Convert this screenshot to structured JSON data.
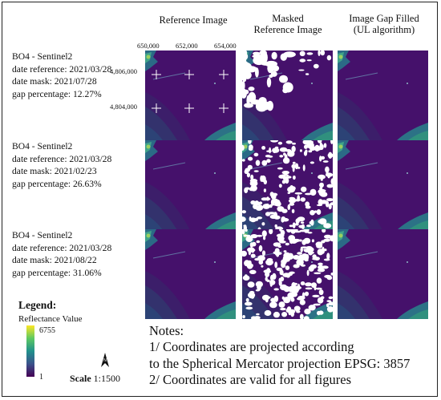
{
  "columns": {
    "reference": "Reference Image",
    "masked": [
      "Masked",
      "Reference Image"
    ],
    "filled": [
      "Image Gap Filled",
      "(UL algorithm)"
    ]
  },
  "coordinates": {
    "x": [
      "650,000",
      "652,000",
      "654,000"
    ],
    "y": [
      "4,806,000",
      "4,804,000"
    ]
  },
  "rows": [
    {
      "title": "BO4 - Sentinel2",
      "date_reference": "date reference: 2021/03/28",
      "date_mask": "date mask: 2021/07/28",
      "gap": "gap percentage: 12.27%"
    },
    {
      "title": "BO4 - Sentinel2",
      "date_reference": "date reference: 2021/03/28",
      "date_mask": "date mask: 2021/02/23",
      "gap": "gap percentage: 26.63%"
    },
    {
      "title": "BO4 - Sentinel2",
      "date_reference": "date reference: 2021/03/28",
      "date_mask": "date mask: 2021/08/22",
      "gap": "gap percentage: 31.06%"
    }
  ],
  "legend": {
    "title": "Legend:",
    "subtitle": "Reflectance Value",
    "max": "6755",
    "min": "1",
    "colors": [
      "#fde725",
      "#5ec962",
      "#21918c",
      "#3b528b",
      "#440154"
    ]
  },
  "scale": {
    "label": "Scale",
    "value": "1:1500"
  },
  "north": "N",
  "notes": [
    "Notes:",
    "1/ Coordinates are projected according",
    "to the Spherical Mercator projection EPSG: 3857",
    "2/ Coordinates are valid for all figures"
  ],
  "gap_fractions": [
    0.1227,
    0.2663,
    0.3106
  ]
}
